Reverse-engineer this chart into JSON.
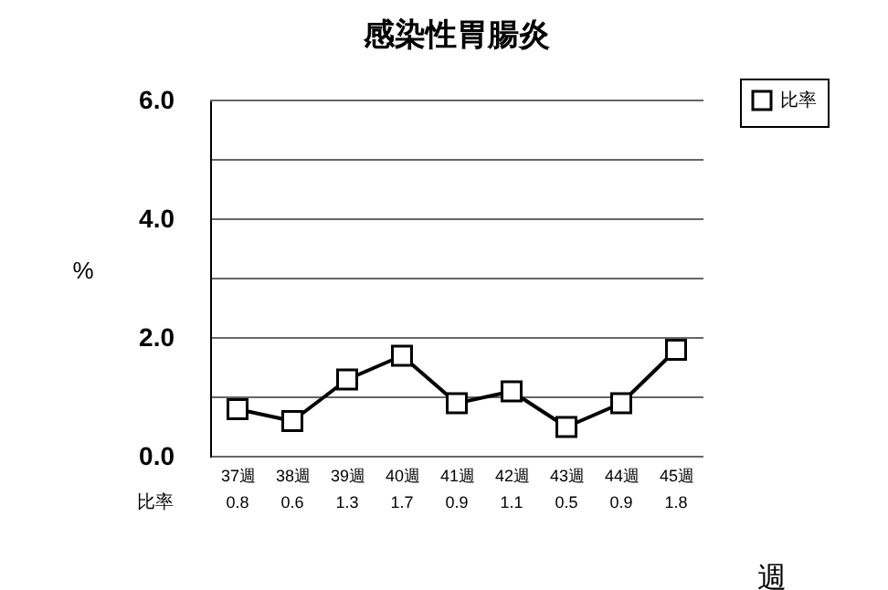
{
  "chart_data": {
    "type": "line",
    "title": "感染性胃腸炎",
    "xlabel": "週",
    "ylabel": "%",
    "categories": [
      "37週",
      "38週",
      "39週",
      "40週",
      "41週",
      "42週",
      "43週",
      "44週",
      "45週"
    ],
    "series": [
      {
        "name": "比率",
        "color": "#000000",
        "values": [
          0.8,
          0.6,
          1.3,
          1.7,
          0.9,
          1.1,
          0.5,
          0.9,
          1.8
        ]
      }
    ],
    "ylim": [
      0,
      6
    ],
    "yticks": [
      {
        "value": 0,
        "label": "0.0"
      },
      {
        "value": 1,
        "label": null
      },
      {
        "value": 2,
        "label": "2.0"
      },
      {
        "value": 3,
        "label": null
      },
      {
        "value": 4,
        "label": "4.0"
      },
      {
        "value": 5,
        "label": null
      },
      {
        "value": 6,
        "label": "6.0"
      }
    ],
    "grid": "y",
    "legend": "top right",
    "marker": "square",
    "line_style": "solid",
    "data_labels": true
  }
}
